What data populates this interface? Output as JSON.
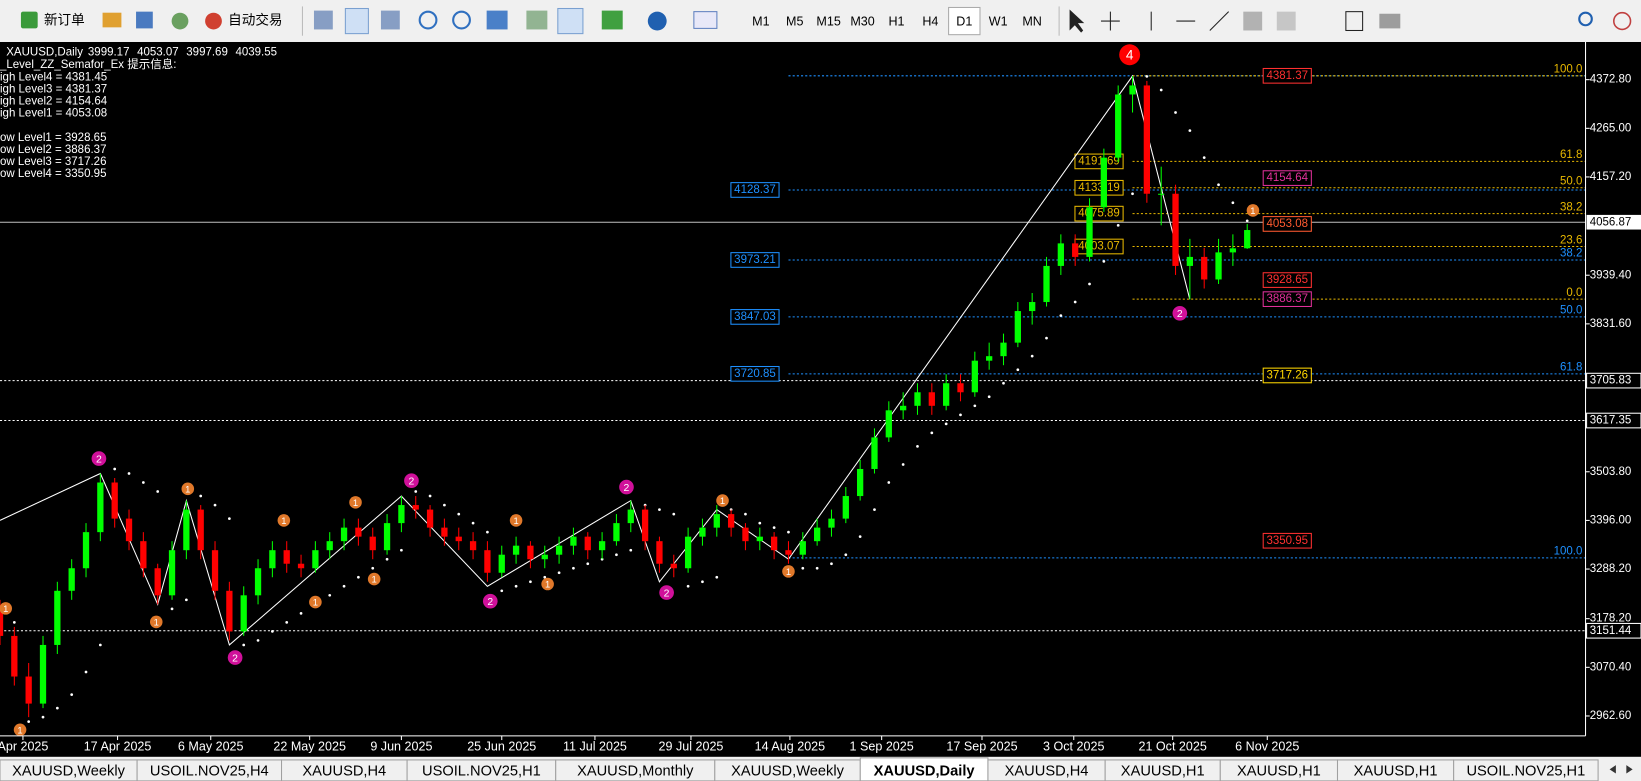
{
  "toolbar": {
    "buttons": [
      "新订单",
      "自动交易"
    ],
    "timeframes": [
      "M1",
      "M5",
      "M15",
      "M30",
      "H1",
      "H4",
      "D1",
      "W1",
      "MN"
    ],
    "active_timeframe": 6
  },
  "chart_data": {
    "type": "candlestick",
    "title": "XAUUSD,Daily",
    "readout": [
      3999.17,
      4053.07,
      3997.69,
      4039.55
    ],
    "indicator_title": "_Level_ZZ_Semafor_Ex 提示信息:",
    "indicator_lines": [
      "igh Level4 = 4381.45",
      "igh Level3 = 4381.37",
      "igh Level2 = 4154.64",
      "igh Level1 = 4053.08",
      "ow Level1 = 3928.65",
      "ow Level2 = 3886.37",
      "ow Level3 = 3717.26",
      "ow Level4 = 3350.95"
    ],
    "up_color": "#00ff00",
    "down_color": "#ff0000",
    "grid": false,
    "xlim": [
      0,
      110.6
    ],
    "xticks": [
      {
        "value": 1.6,
        "label": "Apr 2025"
      },
      {
        "value": 8.2,
        "label": "17 Apr 2025"
      },
      {
        "value": 14.7,
        "label": "6 May 2025"
      },
      {
        "value": 21.6,
        "label": "22 May 2025"
      },
      {
        "value": 28.0,
        "label": "9 Jun 2025"
      },
      {
        "value": 35.0,
        "label": "25 Jun 2025"
      },
      {
        "value": 41.5,
        "label": "11 Jul 2025"
      },
      {
        "value": 48.2,
        "label": "29 Jul 2025"
      },
      {
        "value": 55.1,
        "label": "14 Aug 2025"
      },
      {
        "value": 61.5,
        "label": "1 Sep 2025"
      },
      {
        "value": 68.5,
        "label": "17 Sep 2025"
      },
      {
        "value": 74.9,
        "label": "3 Oct 2025"
      },
      {
        "value": 81.8,
        "label": "21 Oct 2025"
      },
      {
        "value": 88.4,
        "label": "6 Nov 2025"
      }
    ],
    "ylim": [
      2918.5,
      4456.3
    ],
    "yticks": [
      {
        "value": 4372.8,
        "label": "4372.80"
      },
      {
        "value": 4265,
        "label": "4265.00"
      },
      {
        "value": 4157.2,
        "label": "4157.20"
      },
      {
        "value": 3939.4,
        "label": "3939.40"
      },
      {
        "value": 3831.6,
        "label": "3831.60"
      },
      {
        "value": 3503.8,
        "label": "3503.80"
      },
      {
        "value": 3396,
        "label": "3396.00"
      },
      {
        "value": 3288.2,
        "label": "3288.20"
      },
      {
        "value": 3178.2,
        "label": "3178.20"
      },
      {
        "value": 3070.4,
        "label": "3070.40"
      },
      {
        "value": 2962.6,
        "label": "2962.60"
      }
    ],
    "candles": [
      [
        3200,
        3220,
        3120,
        3140
      ],
      [
        3140,
        3160,
        3030,
        3050
      ],
      [
        3050,
        3080,
        2960,
        2990
      ],
      [
        2990,
        3140,
        2980,
        3120
      ],
      [
        3120,
        3260,
        3100,
        3240
      ],
      [
        3240,
        3310,
        3220,
        3290
      ],
      [
        3290,
        3390,
        3270,
        3370
      ],
      [
        3370,
        3500,
        3350,
        3480
      ],
      [
        3480,
        3490,
        3380,
        3400
      ],
      [
        3400,
        3420,
        3330,
        3350
      ],
      [
        3350,
        3370,
        3270,
        3290
      ],
      [
        3290,
        3300,
        3210,
        3230
      ],
      [
        3230,
        3350,
        3220,
        3330
      ],
      [
        3330,
        3440,
        3310,
        3420
      ],
      [
        3420,
        3430,
        3310,
        3330
      ],
      [
        3330,
        3350,
        3220,
        3240
      ],
      [
        3240,
        3260,
        3130,
        3150
      ],
      [
        3150,
        3250,
        3140,
        3230
      ],
      [
        3230,
        3310,
        3210,
        3290
      ],
      [
        3290,
        3350,
        3270,
        3330
      ],
      [
        3330,
        3350,
        3280,
        3300
      ],
      [
        3300,
        3320,
        3270,
        3290
      ],
      [
        3290,
        3350,
        3280,
        3330
      ],
      [
        3330,
        3370,
        3310,
        3350
      ],
      [
        3350,
        3400,
        3330,
        3380
      ],
      [
        3380,
        3400,
        3340,
        3360
      ],
      [
        3360,
        3380,
        3310,
        3330
      ],
      [
        3330,
        3410,
        3320,
        3390
      ],
      [
        3390,
        3450,
        3370,
        3430
      ],
      [
        3430,
        3450,
        3400,
        3420
      ],
      [
        3420,
        3430,
        3360,
        3380
      ],
      [
        3380,
        3400,
        3340,
        3360
      ],
      [
        3360,
        3380,
        3330,
        3350
      ],
      [
        3350,
        3370,
        3310,
        3330
      ],
      [
        3330,
        3350,
        3260,
        3280
      ],
      [
        3280,
        3340,
        3270,
        3320
      ],
      [
        3320,
        3360,
        3300,
        3340
      ],
      [
        3340,
        3350,
        3290,
        3310
      ],
      [
        3310,
        3340,
        3290,
        3320
      ],
      [
        3320,
        3360,
        3300,
        3340
      ],
      [
        3340,
        3380,
        3320,
        3360
      ],
      [
        3360,
        3370,
        3310,
        3330
      ],
      [
        3330,
        3370,
        3310,
        3350
      ],
      [
        3350,
        3410,
        3340,
        3390
      ],
      [
        3390,
        3440,
        3370,
        3420
      ],
      [
        3420,
        3430,
        3330,
        3350
      ],
      [
        3350,
        3360,
        3280,
        3300
      ],
      [
        3300,
        3320,
        3270,
        3290
      ],
      [
        3290,
        3380,
        3280,
        3360
      ],
      [
        3360,
        3400,
        3340,
        3380
      ],
      [
        3380,
        3430,
        3360,
        3410
      ],
      [
        3410,
        3420,
        3360,
        3380
      ],
      [
        3380,
        3390,
        3330,
        3350
      ],
      [
        3350,
        3380,
        3330,
        3360
      ],
      [
        3360,
        3370,
        3310,
        3330
      ],
      [
        3330,
        3350,
        3300,
        3320
      ],
      [
        3320,
        3370,
        3310,
        3350
      ],
      [
        3350,
        3400,
        3340,
        3380
      ],
      [
        3380,
        3420,
        3360,
        3400
      ],
      [
        3400,
        3470,
        3390,
        3450
      ],
      [
        3450,
        3530,
        3440,
        3510
      ],
      [
        3510,
        3600,
        3500,
        3580
      ],
      [
        3580,
        3660,
        3570,
        3640
      ],
      [
        3640,
        3680,
        3620,
        3650
      ],
      [
        3650,
        3700,
        3630,
        3680
      ],
      [
        3680,
        3700,
        3630,
        3650
      ],
      [
        3650,
        3720,
        3640,
        3700
      ],
      [
        3700,
        3720,
        3660,
        3680
      ],
      [
        3680,
        3770,
        3670,
        3750
      ],
      [
        3750,
        3790,
        3730,
        3760
      ],
      [
        3760,
        3810,
        3740,
        3790
      ],
      [
        3790,
        3880,
        3780,
        3860
      ],
      [
        3860,
        3900,
        3830,
        3880
      ],
      [
        3880,
        3980,
        3870,
        3960
      ],
      [
        3960,
        4030,
        3940,
        4010
      ],
      [
        4010,
        4030,
        3960,
        3980
      ],
      [
        3980,
        4110,
        3970,
        4090
      ],
      [
        4090,
        4220,
        4080,
        4200
      ],
      [
        4200,
        4360,
        4190,
        4340
      ],
      [
        4340,
        4381,
        4300,
        4360
      ],
      [
        4360,
        4370,
        4100,
        4120
      ],
      [
        4120,
        4180,
        4050,
        4120
      ],
      [
        4120,
        4140,
        3940,
        3960
      ],
      [
        3960,
        4020,
        3886,
        3980
      ],
      [
        3980,
        4000,
        3910,
        3930
      ],
      [
        3930,
        4020,
        3920,
        3990
      ],
      [
        3990,
        4030,
        3960,
        3999
      ],
      [
        3999.17,
        4053.07,
        3997.69,
        4039.55
      ]
    ],
    "sar": {
      "color": "#ffffff",
      "values": [
        3180,
        3170,
        2950,
        2960,
        2980,
        3010,
        3060,
        3120,
        3510,
        3500,
        3480,
        3460,
        3200,
        3220,
        3450,
        3430,
        3400,
        3120,
        3130,
        3150,
        3170,
        3190,
        3210,
        3230,
        3250,
        3270,
        3290,
        3310,
        3330,
        3460,
        3450,
        3430,
        3410,
        3390,
        3370,
        3240,
        3250,
        3260,
        3270,
        3280,
        3290,
        3300,
        3310,
        3320,
        3330,
        3430,
        3420,
        3410,
        3250,
        3260,
        3270,
        3420,
        3410,
        3390,
        3380,
        3370,
        3290,
        3290,
        3300,
        3320,
        3360,
        3420,
        3480,
        3520,
        3560,
        3590,
        3610,
        3630,
        3650,
        3670,
        3700,
        3730,
        3760,
        3800,
        3850,
        3880,
        3920,
        3970,
        4050,
        4120,
        4380,
        4350,
        4300,
        4260,
        4200,
        4140,
        4100,
        4060
      ]
    },
    "zigzag": {
      "color": "#ffffff",
      "x": [
        0,
        7,
        11,
        13,
        16,
        28,
        34,
        44,
        46,
        50,
        55,
        79,
        83
      ],
      "y": [
        3396,
        3500,
        3210,
        3440,
        3120,
        3450,
        3250,
        3440,
        3260,
        3420,
        3310,
        4381,
        3886
      ]
    },
    "semafor": [
      {
        "label": "4",
        "color": "#ff0000",
        "bar": 78.8,
        "price": 4428
      },
      {
        "label": "2",
        "color": "#d0109a",
        "bar": 6.9,
        "price": 3533
      },
      {
        "label": "2",
        "color": "#d0109a",
        "bar": 16.4,
        "price": 3092
      },
      {
        "label": "2",
        "color": "#d0109a",
        "bar": 28.7,
        "price": 3484
      },
      {
        "label": "2",
        "color": "#d0109a",
        "bar": 34.2,
        "price": 3217
      },
      {
        "label": "2",
        "color": "#d0109a",
        "bar": 43.7,
        "price": 3470
      },
      {
        "label": "2",
        "color": "#d0109a",
        "bar": 46.5,
        "price": 3236
      },
      {
        "label": "2",
        "color": "#d0109a",
        "bar": 82.3,
        "price": 3855
      },
      {
        "label": "1",
        "color": "#e0782a",
        "bar": 0.4,
        "price": 3201
      },
      {
        "label": "1",
        "color": "#e0782a",
        "bar": 1.4,
        "price": 2932
      },
      {
        "label": "1",
        "color": "#e0782a",
        "bar": 10.9,
        "price": 3171
      },
      {
        "label": "1",
        "color": "#e0782a",
        "bar": 13.1,
        "price": 3466
      },
      {
        "label": "1",
        "color": "#e0782a",
        "bar": 19.8,
        "price": 3396
      },
      {
        "label": "1",
        "color": "#e0782a",
        "bar": 22.0,
        "price": 3215
      },
      {
        "label": "1",
        "color": "#e0782a",
        "bar": 24.8,
        "price": 3436
      },
      {
        "label": "1",
        "color": "#e0782a",
        "bar": 26.1,
        "price": 3266
      },
      {
        "label": "1",
        "color": "#e0782a",
        "bar": 36.0,
        "price": 3396
      },
      {
        "label": "1",
        "color": "#e0782a",
        "bar": 38.2,
        "price": 3255
      },
      {
        "label": "1",
        "color": "#e0782a",
        "bar": 50.4,
        "price": 3440
      },
      {
        "label": "1",
        "color": "#e0782a",
        "bar": 55.0,
        "price": 3283
      },
      {
        "label": "1",
        "color": "#e0782a",
        "bar": 87.4,
        "price": 4083
      }
    ],
    "fibs": [
      {
        "color": "#1e90ff",
        "from": 55,
        "levels": [
          {
            "price": 4381.37
          },
          {
            "price": 4128.37,
            "tagged": true
          },
          {
            "price": 3973.21,
            "tagged": true,
            "pct": "38.2"
          },
          {
            "price": 3847.03,
            "tagged": true,
            "pct": "50.0"
          },
          {
            "price": 3720.85,
            "tagged": true,
            "pct": "61.8"
          },
          {
            "price": 3312.9,
            "pct": "100.0"
          }
        ]
      },
      {
        "color": "#e8b800",
        "from": 79,
        "levels": [
          {
            "price": 4381.37,
            "pct": "100.0"
          },
          {
            "price": 4191.69,
            "tagged": true,
            "pct": "61.8"
          },
          {
            "price": 4133.19,
            "tagged": true,
            "pct": "50.0"
          },
          {
            "price": 4075.89,
            "tagged": true,
            "pct": "38.2"
          },
          {
            "price": 4003.07,
            "tagged": true,
            "pct": "23.6"
          },
          {
            "price": 3886.37,
            "pct": "0.0"
          }
        ]
      }
    ],
    "level_boxes": [
      {
        "price": 4381.37,
        "color": "#ff3030"
      },
      {
        "price": 4154.64,
        "color": "#e0309a"
      },
      {
        "price": 4053.08,
        "color": "#ff5a30"
      },
      {
        "price": 3928.65,
        "color": "#ff3030"
      },
      {
        "price": 3886.37,
        "color": "#e0309a"
      },
      {
        "price": 3717.26,
        "color": "#ffd700"
      },
      {
        "price": 3350.95,
        "color": "#ff3030"
      }
    ],
    "hlines": [
      3705.83,
      3617.35,
      3151.44
    ],
    "current_price": 4056.87
  },
  "tabs": {
    "items": [
      "XAUUSD,Weekly",
      "USOIL.NOV25,H4",
      "XAUUSD,H4",
      "USOIL.NOV25,H1",
      "XAUUSD,Monthly",
      "XAUUSD,Weekly",
      "XAUUSD,Daily",
      "XAUUSD,H4",
      "XAUUSD,H1",
      "XAUUSD,H1",
      "XAUUSD,H1",
      "USOIL.NOV25,H1"
    ],
    "active": 6
  }
}
